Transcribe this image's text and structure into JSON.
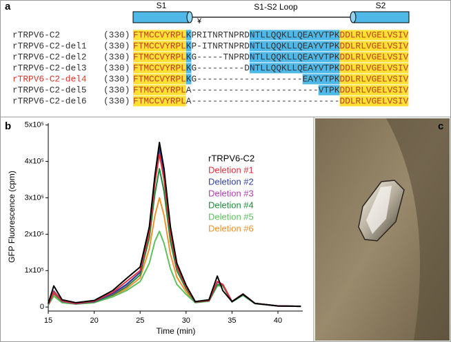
{
  "panel_labels": [
    "a",
    "b",
    "c"
  ],
  "alignment": {
    "s1": "S1",
    "s2": "S2",
    "loop": "S1-S2 Loop",
    "marker": "¥",
    "colors": {
      "yellow": "#ffe033",
      "blue": "#4fb8e6"
    },
    "rows": [
      {
        "name": "rTRPV6-C2",
        "number": "(330)",
        "name_color": "#333333",
        "segments": [
          {
            "text": "FTMCCVYRPL",
            "bg": "yellow"
          },
          {
            "text": "K",
            "bg": "blue"
          },
          {
            "text": "PRITNRTNPRD",
            "bg": null
          },
          {
            "text": "NTLLQQKLLQEAYVTPK",
            "bg": "blue"
          },
          {
            "text": "DDLRLVGELVSIV",
            "bg": "yellow"
          }
        ]
      },
      {
        "name": "rTRPV6-C2-del1",
        "number": "(330)",
        "name_color": "#333333",
        "segments": [
          {
            "text": "FTMCCVYRPL",
            "bg": "yellow"
          },
          {
            "text": "K",
            "bg": "blue"
          },
          {
            "text": "P-ITNRTNPRD",
            "bg": null
          },
          {
            "text": "NTLLQQKLLQEAYVTPK",
            "bg": "blue"
          },
          {
            "text": "DDLRLVGELVSIV",
            "bg": "yellow"
          }
        ]
      },
      {
        "name": "rTRPV6-C2-del2",
        "number": "(330)",
        "name_color": "#333333",
        "segments": [
          {
            "text": "FTMCCVYRPL",
            "bg": "yellow"
          },
          {
            "text": "K",
            "bg": "blue"
          },
          {
            "text": "G-----TNPRD",
            "bg": null
          },
          {
            "text": "NTLLQQKLLQEAYVTPK",
            "bg": "blue"
          },
          {
            "text": "DDLRLVGELVSIV",
            "bg": "yellow"
          }
        ]
      },
      {
        "name": "rTRPV6-C2-del3",
        "number": "(330)",
        "name_color": "#333333",
        "segments": [
          {
            "text": "FTMCCVYRPL",
            "bg": "yellow"
          },
          {
            "text": "K",
            "bg": "blue"
          },
          {
            "text": "G---------D",
            "bg": null
          },
          {
            "text": "NTLLQQKLLQEAYVTPK",
            "bg": "blue"
          },
          {
            "text": "DDLRLVGELVSIV",
            "bg": "yellow"
          }
        ]
      },
      {
        "name": "rTRPV6-C2-del4",
        "number": "(330)",
        "name_color": "#d9362b",
        "segments": [
          {
            "text": "FTMCCVYRPL",
            "bg": "yellow"
          },
          {
            "text": "K",
            "bg": "blue"
          },
          {
            "text": "G--------------------",
            "bg": null
          },
          {
            "text": "EAYVTPK",
            "bg": "blue"
          },
          {
            "text": "DDLRLVGELVSIV",
            "bg": "yellow"
          }
        ]
      },
      {
        "name": "rTRPV6-C2-del5",
        "number": "(330)",
        "name_color": "#333333",
        "segments": [
          {
            "text": "FTMCCVYRPL",
            "bg": "yellow"
          },
          {
            "text": "A------------------------",
            "bg": null
          },
          {
            "text": "VTPK",
            "bg": "blue"
          },
          {
            "text": "DDLRLVGELVSIV",
            "bg": "yellow"
          }
        ]
      },
      {
        "name": "rTRPV6-C2-del6",
        "number": "(330)",
        "name_color": "#333333",
        "segments": [
          {
            "text": "FTMCCVYRPL",
            "bg": "yellow"
          },
          {
            "text": "A----------------------------",
            "bg": null
          },
          {
            "text": "DDLRLVGELVSIV",
            "bg": "yellow"
          }
        ]
      }
    ]
  },
  "chart_data": {
    "type": "line",
    "x_label": "Time (min)",
    "y_label": "GFP Fluorescence (cpm)",
    "xlim": [
      15,
      42.7
    ],
    "xticks": [
      15,
      20,
      25,
      30,
      35,
      40
    ],
    "ylim": [
      -11000,
      505000
    ],
    "yticks": [
      0,
      {
        "value": 100000,
        "label": "1x10⁵"
      },
      {
        "value": 200000,
        "label": "2x10⁵"
      },
      {
        "value": 300000,
        "label": "3x10⁵"
      },
      {
        "value": 400000,
        "label": "4x10⁵"
      },
      {
        "value": 500000,
        "label": "5x10⁵"
      }
    ],
    "x": [
      15,
      15.6,
      16.5,
      18,
      20,
      22,
      23.5,
      25,
      26,
      26.6,
      27.1,
      27.6,
      28.3,
      29,
      30,
      31,
      32.5,
      33.4,
      34,
      35,
      36.2,
      37.5,
      40,
      42.5
    ],
    "series": [
      {
        "name": "rTRPV6-C2",
        "color": "#000000",
        "values": [
          10000,
          58000,
          20000,
          12000,
          18000,
          45000,
          78000,
          110000,
          220000,
          360000,
          452000,
          380000,
          220000,
          120000,
          60000,
          15000,
          20000,
          85000,
          45000,
          15000,
          35000,
          10000,
          3000,
          2000
        ]
      },
      {
        "name": "Deletion #1",
        "color": "#e0303a",
        "values": [
          8000,
          42000,
          17000,
          10000,
          16000,
          40000,
          70000,
          100000,
          205000,
          340000,
          420000,
          350000,
          200000,
          110000,
          55000,
          14000,
          18000,
          70000,
          62000,
          15000,
          36000,
          10000,
          3000,
          2000
        ]
      },
      {
        "name": "Deletion #2",
        "color": "#2e3f9e",
        "values": [
          8000,
          44000,
          17000,
          10000,
          15000,
          37000,
          62000,
          95000,
          210000,
          350000,
          435000,
          365000,
          205000,
          112000,
          56000,
          14000,
          18000,
          70000,
          62000,
          15000,
          36000,
          10000,
          3000,
          2000
        ]
      },
      {
        "name": "Deletion #3",
        "color": "#b040b0",
        "values": [
          7000,
          40000,
          16000,
          9000,
          15000,
          36000,
          60000,
          95000,
          212000,
          352000,
          440000,
          368000,
          206000,
          112000,
          56000,
          14000,
          18000,
          68000,
          62000,
          15000,
          36000,
          10000,
          3000,
          2000
        ]
      },
      {
        "name": "Deletion #4",
        "color": "#1e8a3a",
        "values": [
          6000,
          38000,
          15000,
          9000,
          14000,
          33000,
          55000,
          88000,
          190000,
          310000,
          380000,
          318000,
          180000,
          100000,
          50000,
          13000,
          17000,
          62000,
          60000,
          14000,
          34000,
          10000,
          3000,
          2000
        ]
      },
      {
        "name": "Deletion #5",
        "color": "#5cc05c",
        "values": [
          5000,
          30000,
          12000,
          8000,
          12000,
          28000,
          45000,
          70000,
          120000,
          180000,
          208000,
          175000,
          105000,
          62000,
          35000,
          12000,
          16000,
          58000,
          58000,
          14000,
          32000,
          9000,
          3000,
          2000
        ]
      },
      {
        "name": "Deletion #6",
        "color": "#f0902a",
        "values": [
          6000,
          35000,
          14000,
          9000,
          13000,
          30000,
          50000,
          80000,
          160000,
          250000,
          300000,
          252000,
          145000,
          82000,
          42000,
          13000,
          17000,
          62000,
          60000,
          14000,
          34000,
          10000,
          3000,
          2000
        ]
      }
    ]
  }
}
